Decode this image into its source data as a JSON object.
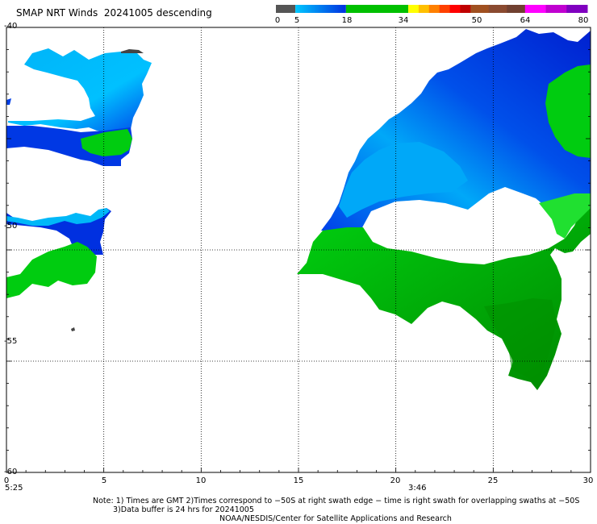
{
  "title": "SMAP NRT Winds  20241005 descending",
  "colorbar": {
    "ticks": [
      {
        "label": "0",
        "value": 0
      },
      {
        "label": "5",
        "value": 5
      },
      {
        "label": "18",
        "value": 18
      },
      {
        "label": "34",
        "value": 34
      },
      {
        "label": "50",
        "value": 50
      },
      {
        "label": "64",
        "value": 64
      },
      {
        "label": "80",
        "value": 80
      }
    ],
    "segments": [
      {
        "from": 0,
        "to": 5,
        "color": "#555555"
      },
      {
        "from": 5,
        "to": 18,
        "color_start": "#00c8ff",
        "color_end": "#0030e0"
      },
      {
        "from": 18,
        "to": 34,
        "color": "#00c000"
      },
      {
        "from": 34,
        "to": 50,
        "colors": [
          "#ffff00",
          "#ffc000",
          "#ff8000",
          "#ff4000",
          "#ff0000",
          "#c00000"
        ]
      },
      {
        "from": 50,
        "to": 64,
        "colors": [
          "#a05020",
          "#8a4a30",
          "#704030"
        ]
      },
      {
        "from": 64,
        "to": 80,
        "colors": [
          "#ff00ff",
          "#c000d0",
          "#8000c0"
        ]
      }
    ]
  },
  "axes": {
    "lon_ticks": [
      "0",
      "5",
      "10",
      "15",
      "20",
      "25",
      "30"
    ],
    "lon_values": [
      0,
      5,
      10,
      15,
      20,
      25,
      30
    ],
    "lat_ticks": [
      "-40",
      "-50",
      "-55",
      "-60"
    ],
    "lat_values": [
      -40,
      -50,
      -55,
      -60
    ],
    "lat_range": [
      -60,
      -40
    ],
    "lon_range": [
      0,
      30
    ],
    "grid": true
  },
  "time_labels": [
    {
      "text": "5:25",
      "lon": 0
    },
    {
      "text": "3:46",
      "lon": 21
    }
  ],
  "notes": {
    "line1": "Note: 1) Times are GMT 2)Times correspond to −50S at right swath edge − time is right swath for overlapping swaths at −50S",
    "line2": "3)Data buffer is 24 hrs for 20241005",
    "line3": "NOAA/NESDIS/Center for Satellite Applications and Research"
  },
  "colors": {
    "light_blue": "#00b8f8",
    "blue": "#0044e8",
    "dark_blue": "#0018d0",
    "green": "#00d010",
    "dark_green": "#009000",
    "calm": "#444444"
  }
}
